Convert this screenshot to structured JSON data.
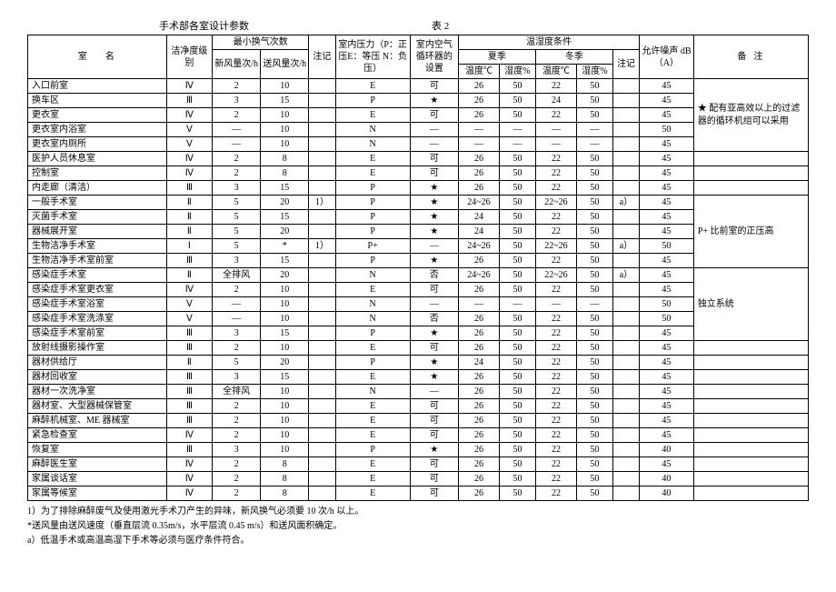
{
  "header": {
    "title_left": "手术部各室设计参数",
    "title_right": "表 2"
  },
  "columns": {
    "room_name": "室名",
    "clean_class": "洁净度级别",
    "air_change": "最小换气次数",
    "fresh_air": "新风量次/h",
    "supply_air": "送风量次/h",
    "note1": "注记",
    "pressure": "室内压力（P：正压E：等压 N：负压）",
    "circulator": "室内空气循环器的设置",
    "temp_humid": "温湿度条件",
    "summer": "夏季",
    "winter": "冬季",
    "temp_c": "温度℃",
    "humid_pct": "湿度%",
    "note2": "注记",
    "noise": "允许噪声 dB（A）",
    "remarks": "备注"
  },
  "rows": [
    {
      "name": "入口前室",
      "class": "Ⅳ",
      "fresh": "2",
      "supply": "10",
      "n1": "",
      "press": "E",
      "circ": "可",
      "st": "26",
      "sh": "50",
      "wt": "22",
      "wh": "50",
      "n2": "",
      "db": "45"
    },
    {
      "name": "换车区",
      "class": "Ⅲ",
      "fresh": "3",
      "supply": "15",
      "n1": "",
      "press": "P",
      "circ": "★",
      "st": "26",
      "sh": "50",
      "wt": "24",
      "wh": "50",
      "n2": "",
      "db": "45"
    },
    {
      "name": "更衣室",
      "class": "Ⅳ",
      "fresh": "2",
      "supply": "10",
      "n1": "",
      "press": "E",
      "circ": "可",
      "st": "26",
      "sh": "50",
      "wt": "22",
      "wh": "50",
      "n2": "",
      "db": "45"
    },
    {
      "name": "更衣室内浴室",
      "class": "Ⅴ",
      "fresh": "—",
      "supply": "10",
      "n1": "",
      "press": "N",
      "circ": "—",
      "st": "—",
      "sh": "—",
      "wt": "—",
      "wh": "—",
      "n2": "",
      "db": "50"
    },
    {
      "name": "更衣室内厕所",
      "class": "Ⅴ",
      "fresh": "—",
      "supply": "10",
      "n1": "",
      "press": "N",
      "circ": "—",
      "st": "—",
      "sh": "—",
      "wt": "—",
      "wh": "—",
      "n2": "",
      "db": "45"
    },
    {
      "name": "医护人员休息室",
      "class": "Ⅳ",
      "fresh": "2",
      "supply": "8",
      "n1": "",
      "press": "E",
      "circ": "可",
      "st": "26",
      "sh": "50",
      "wt": "22",
      "wh": "50",
      "n2": "",
      "db": "45"
    },
    {
      "name": "控制室",
      "class": "Ⅳ",
      "fresh": "2",
      "supply": "8",
      "n1": "",
      "press": "E",
      "circ": "可",
      "st": "26",
      "sh": "50",
      "wt": "22",
      "wh": "50",
      "n2": "",
      "db": "45"
    },
    {
      "name": "内走廊（清洁）",
      "class": "Ⅲ",
      "fresh": "3",
      "supply": "15",
      "n1": "",
      "press": "P",
      "circ": "★",
      "st": "26",
      "sh": "50",
      "wt": "22",
      "wh": "50",
      "n2": "",
      "db": "45"
    },
    {
      "name": "一般手术室",
      "class": "Ⅱ",
      "fresh": "5",
      "supply": "20",
      "n1": "1）",
      "press": "P",
      "circ": "★",
      "st": "24~26",
      "sh": "50",
      "wt": "22~26",
      "wh": "50",
      "n2": "a）",
      "db": "45"
    },
    {
      "name": "灭菌手术室",
      "class": "Ⅱ",
      "fresh": "5",
      "supply": "15",
      "n1": "",
      "press": "P",
      "circ": "★",
      "st": "24",
      "sh": "50",
      "wt": "22",
      "wh": "50",
      "n2": "",
      "db": "45"
    },
    {
      "name": "器械展开室",
      "class": "Ⅱ",
      "fresh": "5",
      "supply": "20",
      "n1": "",
      "press": "P",
      "circ": "★",
      "st": "24",
      "sh": "50",
      "wt": "22",
      "wh": "50",
      "n2": "",
      "db": "45"
    },
    {
      "name": "生物洁净手术室",
      "class": "Ⅰ",
      "fresh": "5",
      "supply": "*",
      "n1": "1）",
      "press": "P+",
      "circ": "—",
      "st": "24~26",
      "sh": "50",
      "wt": "22~26",
      "wh": "50",
      "n2": "a）",
      "db": "50"
    },
    {
      "name": "生物洁净手术室前室",
      "class": "Ⅲ",
      "fresh": "3",
      "supply": "15",
      "n1": "",
      "press": "P",
      "circ": "★",
      "st": "26",
      "sh": "50",
      "wt": "22",
      "wh": "50",
      "n2": "",
      "db": "45"
    },
    {
      "name": "感染症手术室",
      "class": "Ⅱ",
      "fresh": "全排风",
      "supply": "20",
      "n1": "",
      "press": "N",
      "circ": "否",
      "st": "24~26",
      "sh": "50",
      "wt": "22~26",
      "wh": "50",
      "n2": "a）",
      "db": "45"
    },
    {
      "name": "感染症手术室更衣室",
      "class": "Ⅳ",
      "fresh": "2",
      "supply": "10",
      "n1": "",
      "press": "E",
      "circ": "可",
      "st": "26",
      "sh": "50",
      "wt": "22",
      "wh": "50",
      "n2": "",
      "db": "45"
    },
    {
      "name": "感染症手术室浴室",
      "class": "Ⅴ",
      "fresh": "—",
      "supply": "10",
      "n1": "",
      "press": "N",
      "circ": "—",
      "st": "—",
      "sh": "—",
      "wt": "—",
      "wh": "—",
      "n2": "",
      "db": "50"
    },
    {
      "name": "感染症手术室洗涤室",
      "class": "Ⅴ",
      "fresh": "—",
      "supply": "10",
      "n1": "",
      "press": "N",
      "circ": "否",
      "st": "26",
      "sh": "50",
      "wt": "22",
      "wh": "50",
      "n2": "",
      "db": "50"
    },
    {
      "name": "感染症手术室前室",
      "class": "Ⅲ",
      "fresh": "3",
      "supply": "15",
      "n1": "",
      "press": "P",
      "circ": "★",
      "st": "26",
      "sh": "50",
      "wt": "22",
      "wh": "50",
      "n2": "",
      "db": "45"
    },
    {
      "name": "放射线摄影操作室",
      "class": "Ⅲ",
      "fresh": "2",
      "supply": "10",
      "n1": "",
      "press": "E",
      "circ": "可",
      "st": "26",
      "sh": "50",
      "wt": "22",
      "wh": "50",
      "n2": "",
      "db": "45"
    },
    {
      "name": "器材供给厅",
      "class": "Ⅱ",
      "fresh": "5",
      "supply": "20",
      "n1": "",
      "press": "P",
      "circ": "★",
      "st": "24",
      "sh": "50",
      "wt": "22",
      "wh": "50",
      "n2": "",
      "db": "45"
    },
    {
      "name": "器材回收室",
      "class": "Ⅲ",
      "fresh": "3",
      "supply": "15",
      "n1": "",
      "press": "E",
      "circ": "★",
      "st": "26",
      "sh": "50",
      "wt": "22",
      "wh": "50",
      "n2": "",
      "db": "45"
    },
    {
      "name": "器材一次洗净室",
      "class": "Ⅲ",
      "fresh": "全排风",
      "supply": "10",
      "n1": "",
      "press": "N",
      "circ": "—",
      "st": "26",
      "sh": "50",
      "wt": "22",
      "wh": "50",
      "n2": "",
      "db": "45"
    },
    {
      "name": "器材室、大型器械保管室",
      "class": "Ⅲ",
      "fresh": "2",
      "supply": "10",
      "n1": "",
      "press": "E",
      "circ": "可",
      "st": "26",
      "sh": "50",
      "wt": "22",
      "wh": "50",
      "n2": "",
      "db": "45"
    },
    {
      "name": "麻醉机械室、ME 器械室",
      "class": "Ⅲ",
      "fresh": "2",
      "supply": "10",
      "n1": "",
      "press": "E",
      "circ": "可",
      "st": "26",
      "sh": "50",
      "wt": "22",
      "wh": "50",
      "n2": "",
      "db": "45"
    },
    {
      "name": "紧急检查室",
      "class": "Ⅳ",
      "fresh": "2",
      "supply": "10",
      "n1": "",
      "press": "E",
      "circ": "可",
      "st": "26",
      "sh": "50",
      "wt": "22",
      "wh": "50",
      "n2": "",
      "db": "45"
    },
    {
      "name": "恢复室",
      "class": "Ⅲ",
      "fresh": "3",
      "supply": "10",
      "n1": "",
      "press": "P",
      "circ": "★",
      "st": "26",
      "sh": "50",
      "wt": "22",
      "wh": "50",
      "n2": "",
      "db": "40"
    },
    {
      "name": "麻醉医生室",
      "class": "Ⅳ",
      "fresh": "2",
      "supply": "8",
      "n1": "",
      "press": "E",
      "circ": "可",
      "st": "26",
      "sh": "50",
      "wt": "22",
      "wh": "50",
      "n2": "",
      "db": "45"
    },
    {
      "name": "家属谈话室",
      "class": "Ⅳ",
      "fresh": "2",
      "supply": "8",
      "n1": "",
      "press": "E",
      "circ": "可",
      "st": "26",
      "sh": "50",
      "wt": "22",
      "wh": "50",
      "n2": "",
      "db": "40"
    },
    {
      "name": "家属等候室",
      "class": "Ⅳ",
      "fresh": "2",
      "supply": "8",
      "n1": "",
      "press": "E",
      "circ": "可",
      "st": "26",
      "sh": "50",
      "wt": "22",
      "wh": "50",
      "n2": "",
      "db": "40"
    }
  ],
  "side_notes": {
    "note1": "★ 配有亚高效以上的过滤器的循环机组可以采用",
    "note2": "P+ 比前室的正压高",
    "note3": "独立系统"
  },
  "footnotes": {
    "f1": "1）为了排除麻醉废气及使用激光手术刀产生的异味，新风换气必须要 10 次/h 以上。",
    "f2": "*送风量由送风速度（垂直层流 0.35m/s，水平层流 0.45 m/s）和送风面积确定。",
    "f3": "a）低温手术或高温高湿下手术等必须与医疗条件符合。"
  }
}
